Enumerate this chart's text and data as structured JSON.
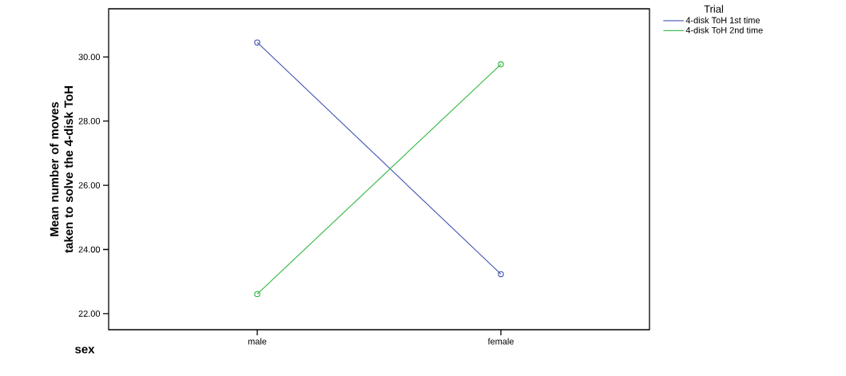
{
  "chart_data": {
    "type": "line",
    "categories": [
      "male",
      "female"
    ],
    "series": [
      {
        "name": "4-disk ToH 1st time",
        "color": "#3f51b1",
        "values": [
          30.45,
          23.23
        ]
      },
      {
        "name": "4-disk ToH 2nd time",
        "color": "#2db83d",
        "values": [
          22.61,
          29.77
        ]
      }
    ],
    "xlabel": "sex",
    "ylabel": "Mean number of moves taken to solve the 4-disk ToH",
    "legend_title": "Trial",
    "legend": "top right",
    "marker": "circle",
    "grid": false,
    "ylim": [
      21.5,
      31.5
    ],
    "yticks": [
      {
        "value": 22,
        "label": "22.00"
      },
      {
        "value": 24,
        "label": "24.00"
      },
      {
        "value": 26,
        "label": "26.00"
      },
      {
        "value": 28,
        "label": "28.00"
      },
      {
        "value": 30,
        "label": "30.00"
      }
    ]
  }
}
